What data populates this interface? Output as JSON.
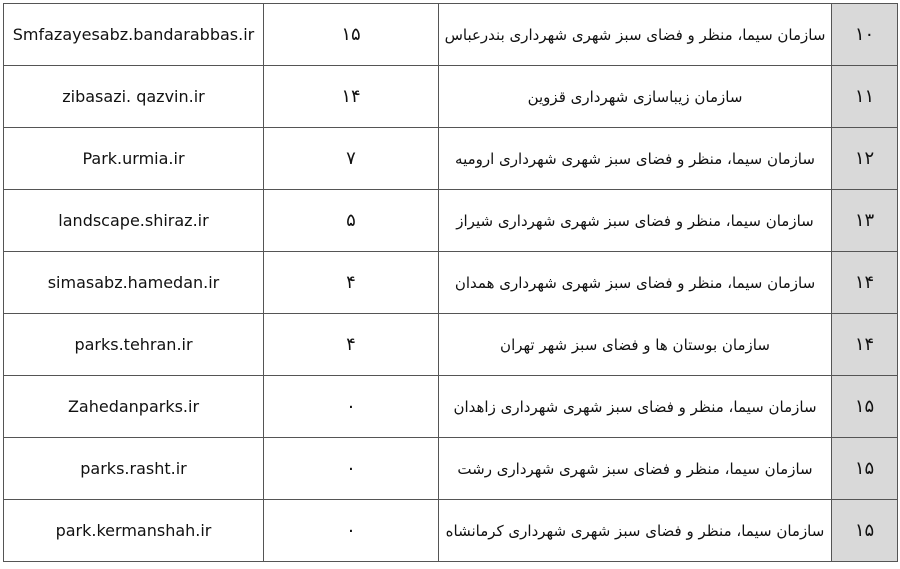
{
  "table": {
    "rows": [
      {
        "url": "Smfazayesabz.bandarabbas.ir",
        "count": "۱۵",
        "name": "سازمان سیما، منظر و فضای سبز شهری شهرداری بندرعباس",
        "rank": "۱۰"
      },
      {
        "url": "zibasazi. qazvin.ir",
        "count": "۱۴",
        "name": "سازمان زیباسازی شهرداری قزوین",
        "rank": "۱۱"
      },
      {
        "url": "Park.urmia.ir",
        "count": "۷",
        "name": "سازمان سیما، منظر و فضای سبز شهری شهرداری ارومیه",
        "rank": "۱۲"
      },
      {
        "url": "landscape.shiraz.ir",
        "count": "۵",
        "name": "سازمان سیما، منظر و فضای سبز شهری شهرداری شیراز",
        "rank": "۱۳"
      },
      {
        "url": "simasabz.hamedan.ir",
        "count": "۴",
        "name": "سازمان سیما، منظر و فضای سبز شهری شهرداری همدان",
        "rank": "۱۴"
      },
      {
        "url": "parks.tehran.ir",
        "count": "۴",
        "name": "سازمان بوستان ها و فضای سبز شهر تهران",
        "rank": "۱۴"
      },
      {
        "url": "Zahedanparks.ir",
        "count": "۰",
        "name": "سازمان سیما، منظر و فضای سبز شهری شهرداری زاهدان",
        "rank": "۱۵"
      },
      {
        "url": "parks.rasht.ir",
        "count": "۰",
        "name": "سازمان سیما، منظر و فضای سبز شهری شهرداری رشت",
        "rank": "۱۵"
      },
      {
        "url": "park.kermanshah.ir",
        "count": "۰",
        "name": "سازمان سیما، منظر و فضای سبز شهری شهرداری کرمانشاه",
        "rank": "۱۵"
      }
    ]
  }
}
